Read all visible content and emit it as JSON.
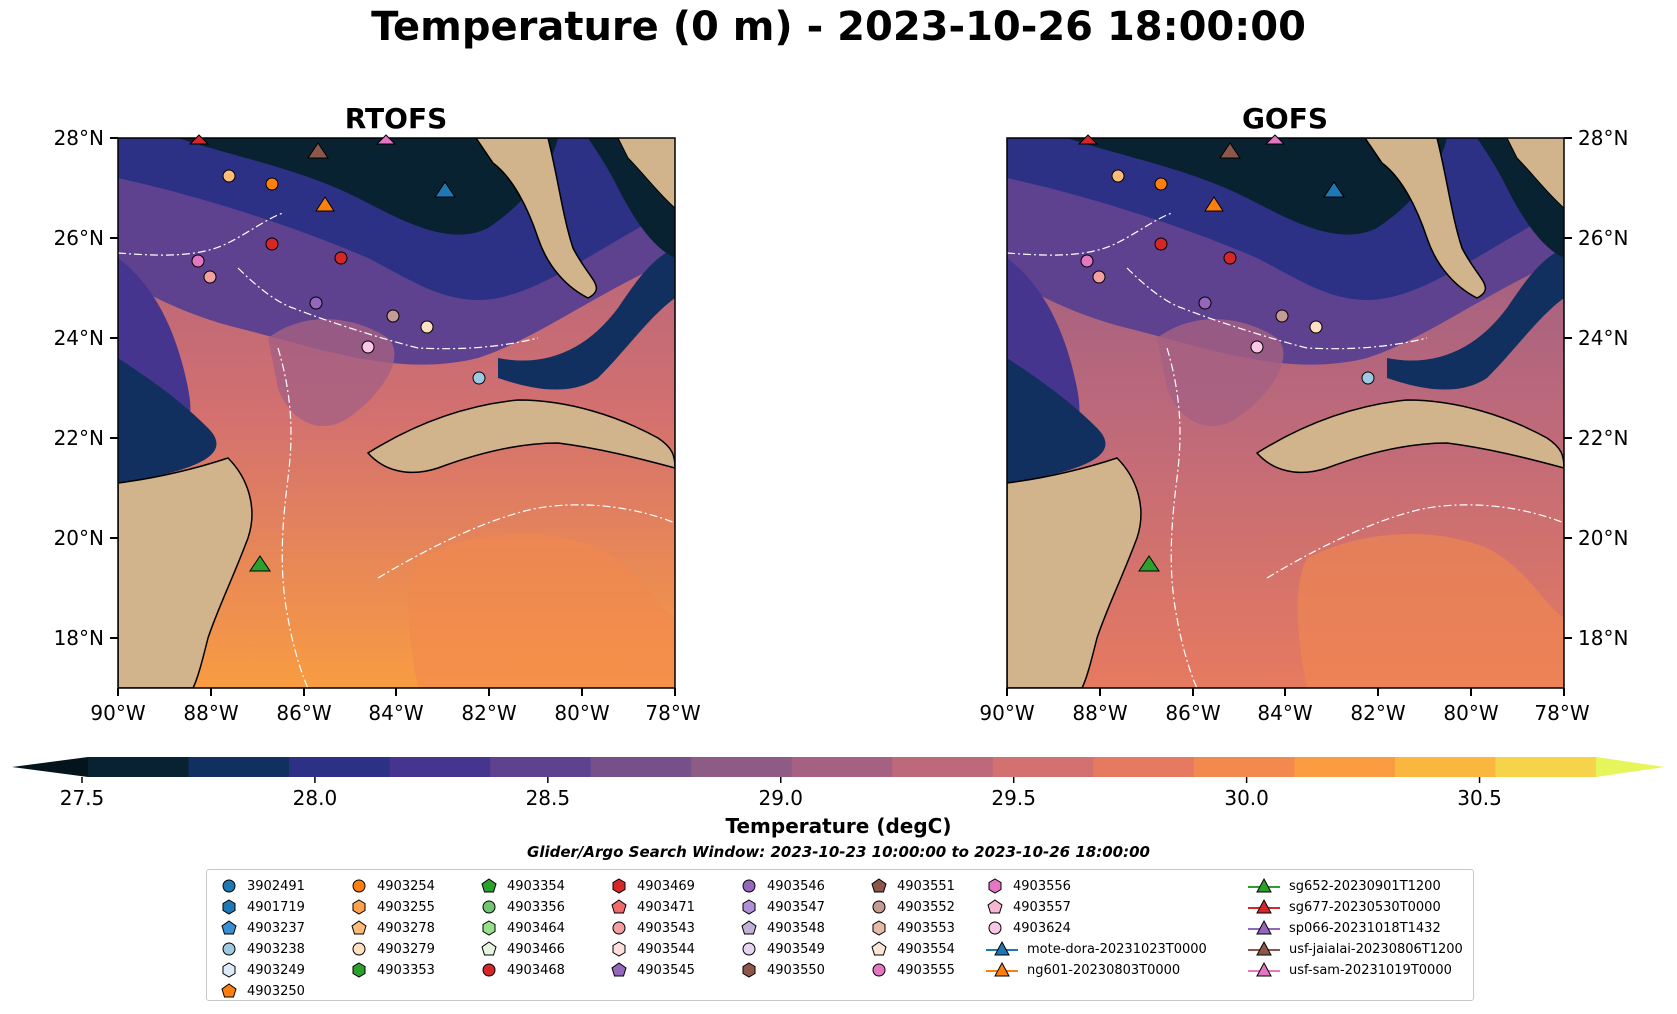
{
  "title": "Temperature (0 m) - 2023-10-26 18:00:00",
  "panels": [
    {
      "title": "RTOFS",
      "ylabels_side": "left"
    },
    {
      "title": "GOFS",
      "ylabels_side": "right"
    }
  ],
  "lat_ticks": [
    "28°N",
    "26°N",
    "24°N",
    "22°N",
    "20°N",
    "18°N"
  ],
  "lon_ticks": [
    "90°W",
    "88°W",
    "86°W",
    "84°W",
    "82°W",
    "80°W",
    "78°W"
  ],
  "colorbar": {
    "label": "Temperature (degC)",
    "ticks": [
      "27.5",
      "28.0",
      "28.5",
      "29.0",
      "29.5",
      "30.0",
      "30.5"
    ],
    "colors": [
      "#082232",
      "#12305f",
      "#2c3186",
      "#46358e",
      "#5e418f",
      "#775089",
      "#8e5a86",
      "#a56082",
      "#bd697b",
      "#d37070",
      "#e67a60",
      "#f2894f",
      "#f99c42",
      "#fbb63f",
      "#f5d44b"
    ],
    "under_color": "#03141c",
    "over_color": "#e6f55a"
  },
  "subtitle": "Glider/Argo Search Window: 2023-10-23 10:00:00 to 2023-10-26 18:00:00",
  "land_color": "#d2b48c",
  "legend": {
    "columns": [
      [
        {
          "label": "3902491",
          "marker": "circle",
          "color": "#1f77b4"
        },
        {
          "label": "4901719",
          "marker": "hexagon",
          "color": "#1f77b4"
        },
        {
          "label": "4903237",
          "marker": "pentagon",
          "color": "#3a8fd4"
        },
        {
          "label": "4903238",
          "marker": "circle",
          "color": "#9ecae1"
        },
        {
          "label": "4903249",
          "marker": "hexagon",
          "color": "#deebf7"
        },
        {
          "label": "4903250",
          "marker": "pentagon",
          "color": "#ff7f0e"
        }
      ],
      [
        {
          "label": "4903254",
          "marker": "circle",
          "color": "#ff7f0e"
        },
        {
          "label": "4903255",
          "marker": "hexagon",
          "color": "#ffa04d"
        },
        {
          "label": "4903278",
          "marker": "pentagon",
          "color": "#ffbb78"
        },
        {
          "label": "4903279",
          "marker": "circle",
          "color": "#ffe0c0"
        },
        {
          "label": "4903353",
          "marker": "hexagon",
          "color": "#2ca02c"
        }
      ],
      [
        {
          "label": "4903354",
          "marker": "pentagon",
          "color": "#2ca02c"
        },
        {
          "label": "4903356",
          "marker": "circle",
          "color": "#74c476"
        },
        {
          "label": "4903464",
          "marker": "hexagon",
          "color": "#98df8a"
        },
        {
          "label": "4903466",
          "marker": "pentagon",
          "color": "#e5f5e0"
        },
        {
          "label": "4903468",
          "marker": "circle",
          "color": "#d62728"
        }
      ],
      [
        {
          "label": "4903469",
          "marker": "hexagon",
          "color": "#d62728"
        },
        {
          "label": "4903471",
          "marker": "pentagon",
          "color": "#ef6b6b"
        },
        {
          "label": "4903543",
          "marker": "circle",
          "color": "#f4a0a0"
        },
        {
          "label": "4903544",
          "marker": "hexagon",
          "color": "#fde0dd"
        },
        {
          "label": "4903545",
          "marker": "pentagon",
          "color": "#9467bd"
        }
      ],
      [
        {
          "label": "4903546",
          "marker": "circle",
          "color": "#9467bd"
        },
        {
          "label": "4903547",
          "marker": "hexagon",
          "color": "#b08fd6"
        },
        {
          "label": "4903548",
          "marker": "pentagon",
          "color": "#c5b0d5"
        },
        {
          "label": "4903549",
          "marker": "circle",
          "color": "#e4d4f0"
        },
        {
          "label": "4903550",
          "marker": "hexagon",
          "color": "#8c564b"
        }
      ],
      [
        {
          "label": "4903551",
          "marker": "pentagon",
          "color": "#8c564b"
        },
        {
          "label": "4903552",
          "marker": "circle",
          "color": "#c49c94"
        },
        {
          "label": "4903553",
          "marker": "hexagon",
          "color": "#e7b9a8"
        },
        {
          "label": "4903554",
          "marker": "pentagon",
          "color": "#fbe5d6"
        },
        {
          "label": "4903555",
          "marker": "circle",
          "color": "#e377c2"
        }
      ],
      [
        {
          "label": "4903556",
          "marker": "hexagon",
          "color": "#e377c2"
        },
        {
          "label": "4903557",
          "marker": "pentagon",
          "color": "#f7b6d2"
        },
        {
          "label": "4903624",
          "marker": "circle",
          "color": "#f9c8e6"
        },
        {
          "label": "mote-dora-20231023T0000",
          "marker": "triangle-line",
          "color": "#1f77b4"
        },
        {
          "label": "ng601-20230803T0000",
          "marker": "triangle-line",
          "color": "#ff7f0e"
        }
      ],
      [
        {
          "label": "sg652-20230901T1200",
          "marker": "triangle-line",
          "color": "#2ca02c"
        },
        {
          "label": "sg677-20230530T0000",
          "marker": "triangle-line",
          "color": "#d62728"
        },
        {
          "label": "sp066-20231018T1432",
          "marker": "triangle-line",
          "color": "#9467bd"
        },
        {
          "label": "usf-jaialai-20230806T1200",
          "marker": "triangle-line",
          "color": "#8c564b"
        },
        {
          "label": "usf-sam-20231019T0000",
          "marker": "triangle-line",
          "color": "#e377c2"
        }
      ]
    ]
  }
}
